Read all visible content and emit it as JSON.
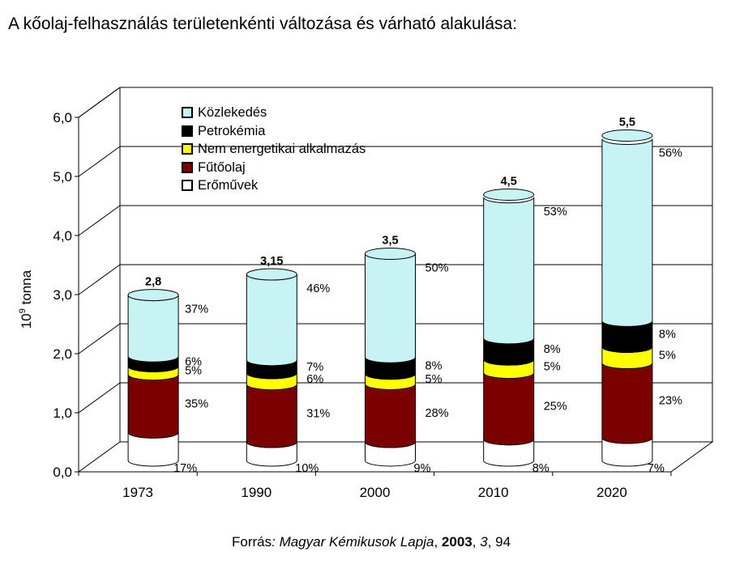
{
  "title": "A kőolaj-felhasználás területenkénti változása és várható alakulása:",
  "source": {
    "prefix": "Forrás",
    "journal": ": Magyar Kémikusok Lapja",
    "year": "2003",
    "volume": "3",
    "page": "94"
  },
  "chart_data": {
    "type": "bar",
    "stacked": true,
    "style": "3d-cylinder",
    "categories": [
      "1973",
      "1990",
      "2000",
      "2010",
      "2020"
    ],
    "totals": [
      2.8,
      3.15,
      3.5,
      4.5,
      5.5
    ],
    "total_labels": [
      "2,8",
      "3,15",
      "3,5",
      "4,5",
      "5,5"
    ],
    "series": [
      {
        "name": "Erőművek",
        "color": "#ffffff",
        "percent": [
          17,
          10,
          9,
          8,
          7
        ],
        "labels": [
          "17%",
          "10%",
          "9%",
          "8%",
          "7%"
        ]
      },
      {
        "name": "Fűtőolaj",
        "color": "#7b0000",
        "percent": [
          35,
          31,
          28,
          25,
          23
        ],
        "labels": [
          "35%",
          "31%",
          "28%",
          "25%",
          "23%"
        ]
      },
      {
        "name": "Nem energetikai alkalmazás",
        "color": "#ffff00",
        "percent": [
          5,
          6,
          5,
          5,
          5
        ],
        "labels": [
          "5%",
          "6%",
          "5%",
          "5%",
          "5%"
        ]
      },
      {
        "name": "Petrokémia",
        "color": "#000000",
        "percent": [
          6,
          7,
          8,
          8,
          8
        ],
        "labels": [
          "6%",
          "7%",
          "8%",
          "8%",
          "8%"
        ]
      },
      {
        "name": "Közlekedés",
        "color": "#c7f3f5",
        "percent": [
          37,
          46,
          50,
          53,
          56
        ],
        "labels": [
          "37%",
          "46%",
          "50%",
          "53%",
          "56%"
        ]
      }
    ],
    "legend_order": [
      "Közlekedés",
      "Petrokémia",
      "Nem energetikai alkalmazás",
      "Fűtőolaj",
      "Erőművek"
    ],
    "legend_position": "top-left inside plot",
    "ylabel": "10^9 tonna",
    "ylabel_base": "10",
    "ylabel_exp": "9",
    "ylabel_unit": "tonna",
    "ylim": [
      0,
      6
    ],
    "yticks": [
      0,
      1,
      2,
      3,
      4,
      5,
      6
    ],
    "ytick_labels": [
      "0,0",
      "1,0",
      "2,0",
      "3,0",
      "4,0",
      "5,0",
      "6,0"
    ],
    "grid": true
  }
}
